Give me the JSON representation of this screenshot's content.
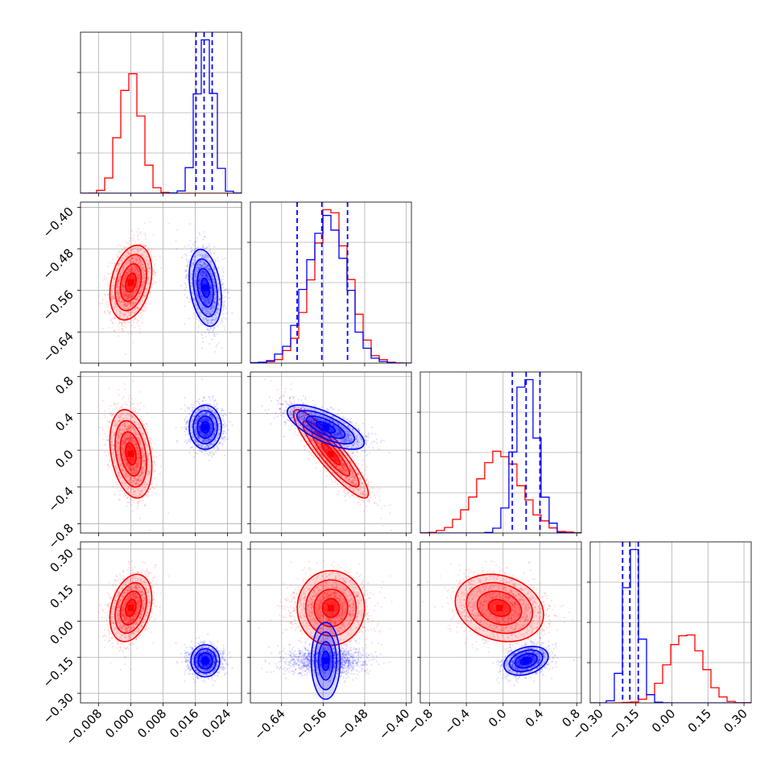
{
  "chart_data": {
    "type": "corner",
    "grid": true,
    "colors": {
      "red": "#ff0000",
      "blue": "#0000ff"
    },
    "parameters": [
      {
        "ticks": [
          -0.008,
          0.0,
          0.008,
          0.016,
          0.024
        ],
        "tick_labels": [
          "−0.008",
          "0.000",
          "0.008",
          "0.016",
          "0.024"
        ],
        "range": [
          -0.0125,
          0.0275
        ]
      },
      {
        "ticks": [
          -0.64,
          -0.56,
          -0.48,
          -0.4
        ],
        "tick_labels": [
          "−0.64",
          "−0.56",
          "−0.48",
          "−0.40"
        ],
        "range": [
          -0.7,
          -0.39
        ]
      },
      {
        "ticks": [
          -0.8,
          -0.4,
          0.0,
          0.4,
          0.8
        ],
        "tick_labels": [
          "−0.8",
          "−0.4",
          "0.0",
          "0.4",
          "0.8"
        ],
        "range": [
          -0.9,
          0.85
        ]
      },
      {
        "ticks": [
          -0.3,
          -0.15,
          0.0,
          0.15,
          0.3
        ],
        "tick_labels": [
          "−0.30",
          "−0.15",
          "0.00",
          "0.15",
          "0.30"
        ],
        "range": [
          -0.34,
          0.33
        ]
      }
    ],
    "series": [
      {
        "color": "red",
        "mean": [
          0.0,
          -0.545,
          -0.04,
          0.055
        ],
        "std": [
          0.0026,
          0.036,
          0.24,
          0.07
        ],
        "correlation": [
          [
            1,
            0.3,
            -0.3,
            0.3
          ],
          [
            0.3,
            1,
            -0.9,
            0
          ],
          [
            -0.3,
            -0.9,
            1,
            -0.2
          ],
          [
            0.3,
            0,
            -0.2,
            1
          ]
        ]
      },
      {
        "color": "blue",
        "mean": [
          0.0185,
          -0.555,
          0.25,
          -0.165
        ],
        "std": [
          0.002,
          0.037,
          0.12,
          0.03
        ],
        "correlation": [
          [
            1,
            -0.3,
            0,
            0
          ],
          [
            -0.3,
            1,
            -0.7,
            0
          ],
          [
            0,
            -0.7,
            1,
            0.3
          ],
          [
            0,
            0,
            0.3,
            1
          ]
        ]
      }
    ],
    "quantile_lines": [
      {
        "parameter": 0,
        "color": "blue",
        "values": [
          0.0162,
          0.0182,
          0.0202
        ]
      },
      {
        "parameter": 1,
        "color": "blue",
        "values": [
          -0.61,
          -0.5625,
          -0.513
        ]
      },
      {
        "parameter": 2,
        "color": "blue",
        "values": [
          0.1,
          0.25,
          0.4
        ]
      },
      {
        "parameter": 3,
        "color": "blue",
        "values": [
          -0.205,
          -0.175,
          -0.14
        ]
      }
    ]
  }
}
